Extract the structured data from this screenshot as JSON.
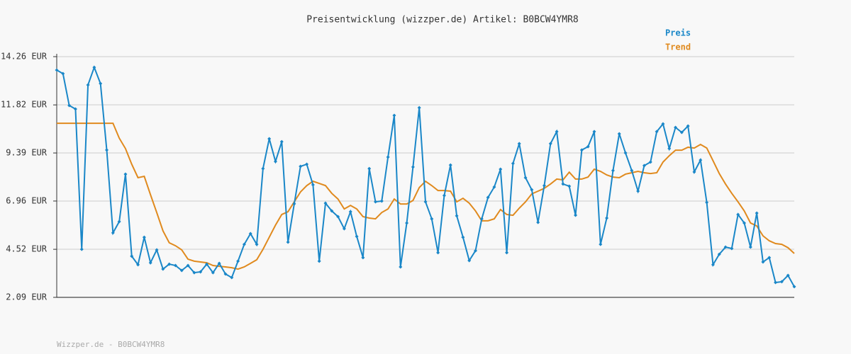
{
  "chart_data": {
    "type": "line",
    "title": "Preisentwicklung (wizzper.de) Artikel: B0BCW4YMR8",
    "footer": "Wizzper.de - B0BCW4YMR8",
    "categories": [
      null,
      null,
      null,
      null,
      null,
      null,
      null,
      null,
      null,
      null,
      null,
      null,
      null,
      null,
      null,
      null,
      null,
      null,
      null,
      null,
      null,
      null,
      null,
      null,
      null,
      null,
      null,
      null,
      null,
      null,
      null,
      null,
      null,
      null,
      null,
      null,
      null,
      null,
      null,
      null,
      null,
      null,
      null,
      null,
      null,
      null,
      null,
      null,
      null,
      null,
      null,
      null,
      null,
      null,
      null,
      null,
      null,
      null,
      null,
      null,
      null,
      null,
      null,
      null,
      null,
      null,
      null,
      null,
      null,
      null,
      null,
      null,
      null,
      null,
      null,
      null,
      null,
      null,
      null,
      null,
      null,
      null,
      null,
      null,
      null,
      null,
      null,
      null,
      null,
      null,
      null,
      null,
      null,
      null,
      null,
      null,
      null,
      null,
      null,
      null,
      null,
      null,
      null,
      null,
      null,
      null,
      null,
      null,
      null,
      null,
      null,
      null,
      null,
      null,
      null,
      null,
      null,
      null,
      null
    ],
    "series": [
      {
        "name": "Preis",
        "color": "#1a87c8",
        "markers": true,
        "values": [
          13.58,
          13.4,
          11.79,
          11.61,
          4.52,
          12.83,
          13.72,
          12.9,
          9.54,
          5.35,
          5.92,
          8.32,
          4.17,
          3.74,
          5.13,
          3.84,
          4.49,
          3.52,
          3.77,
          3.7,
          3.45,
          3.7,
          3.34,
          3.38,
          3.77,
          3.34,
          3.81,
          3.27,
          3.09,
          3.92,
          4.77,
          5.31,
          4.77,
          8.6,
          10.11,
          8.96,
          9.96,
          4.88,
          6.82,
          8.71,
          8.82,
          7.78,
          3.92,
          6.85,
          6.46,
          6.17,
          5.56,
          6.42,
          5.17,
          4.1,
          8.6,
          6.92,
          6.96,
          9.18,
          11.29,
          3.63,
          5.85,
          8.68,
          11.68,
          6.92,
          6.06,
          4.35,
          7.24,
          8.78,
          6.21,
          5.13,
          3.95,
          4.45,
          6.06,
          7.14,
          7.67,
          8.57,
          4.35,
          8.86,
          9.86,
          8.14,
          7.53,
          5.88,
          7.74,
          9.86,
          10.47,
          7.82,
          7.71,
          6.24,
          9.54,
          9.71,
          10.47,
          4.77,
          6.1,
          8.5,
          10.36,
          9.39,
          8.5,
          7.46,
          8.75,
          8.93,
          10.47,
          10.86,
          9.61,
          10.68,
          10.43,
          10.75,
          8.43,
          9.03,
          6.89,
          3.74,
          4.27,
          4.63,
          4.56,
          6.28,
          5.85,
          4.63,
          6.35,
          3.88,
          4.1,
          2.84,
          2.88,
          3.2,
          2.63
        ]
      },
      {
        "name": "Trend",
        "color": "#e08a1e",
        "markers": false,
        "values": [
          10.89,
          10.89,
          10.89,
          10.89,
          10.89,
          10.89,
          10.89,
          10.89,
          10.89,
          10.89,
          10.14,
          9.61,
          8.82,
          8.14,
          8.21,
          7.28,
          6.38,
          5.45,
          4.85,
          4.7,
          4.49,
          4.02,
          3.92,
          3.88,
          3.84,
          3.7,
          3.66,
          3.63,
          3.59,
          3.52,
          3.63,
          3.81,
          3.99,
          4.52,
          5.13,
          5.74,
          6.28,
          6.42,
          6.92,
          7.42,
          7.74,
          7.96,
          7.85,
          7.74,
          7.35,
          7.06,
          6.56,
          6.74,
          6.56,
          6.17,
          6.1,
          6.06,
          6.38,
          6.56,
          7.06,
          6.81,
          6.81,
          6.99,
          7.64,
          7.96,
          7.74,
          7.49,
          7.49,
          7.46,
          6.92,
          7.1,
          6.85,
          6.46,
          5.96,
          5.96,
          6.06,
          6.53,
          6.28,
          6.24,
          6.6,
          6.92,
          7.32,
          7.46,
          7.6,
          7.82,
          8.07,
          8.03,
          8.42,
          8.07,
          8.07,
          8.17,
          8.57,
          8.46,
          8.28,
          8.17,
          8.14,
          8.32,
          8.39,
          8.46,
          8.39,
          8.35,
          8.39,
          8.93,
          9.25,
          9.53,
          9.53,
          9.68,
          9.64,
          9.82,
          9.64,
          9.0,
          8.35,
          7.82,
          7.35,
          6.92,
          6.46,
          5.85,
          5.7,
          5.2,
          4.95,
          4.81,
          4.77,
          4.6,
          4.31
        ]
      }
    ],
    "ylim": [
      2.09,
      14.26
    ],
    "yticks": [
      {
        "value": 2.09,
        "label": "2.09 EUR"
      },
      {
        "value": 4.52,
        "label": "4.52 EUR"
      },
      {
        "value": 6.96,
        "label": "6.96 EUR"
      },
      {
        "value": 9.39,
        "label": "9.39 EUR"
      },
      {
        "value": 11.82,
        "label": "11.82 EUR"
      },
      {
        "value": 14.26,
        "label": "14.26 EUR"
      }
    ],
    "grid": true,
    "legend": "top-right"
  }
}
